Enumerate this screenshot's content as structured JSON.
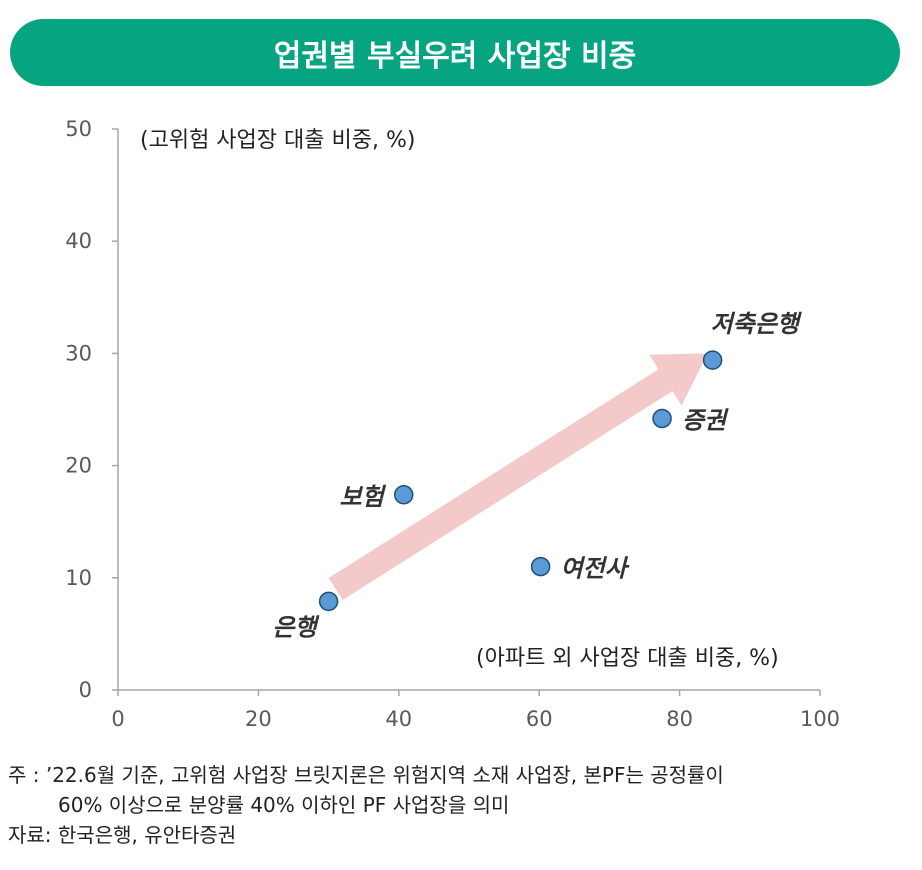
{
  "title": "업권별 부실우려 사업장 비중",
  "colors": {
    "banner": "#06A480",
    "point_fill": "#5B9BD5",
    "point_stroke": "#1F4E79",
    "arrow": "#F4C9C9",
    "axis": "#A6A6A6",
    "tick_text": "#595959"
  },
  "chart_data": {
    "type": "scatter",
    "ylabel": "(고위험 사업장 대출 비중, %)",
    "xlabel": "(아파트 외 사업장 대출 비중, %)",
    "xlim": [
      0,
      100
    ],
    "ylim": [
      0,
      50
    ],
    "x_ticks": [
      0,
      20,
      40,
      60,
      80,
      100
    ],
    "y_ticks": [
      0,
      10,
      20,
      30,
      40,
      50
    ],
    "grid": false,
    "points": [
      {
        "label": "은행",
        "x": 30,
        "y": 7.9
      },
      {
        "label": "보험",
        "x": 40.7,
        "y": 17.4
      },
      {
        "label": "여전사",
        "x": 60.2,
        "y": 11
      },
      {
        "label": "증권",
        "x": 77.5,
        "y": 24.2
      },
      {
        "label": "저축은행",
        "x": 84.7,
        "y": 29.4
      }
    ],
    "trend_arrow": {
      "from": [
        31,
        9
      ],
      "to": [
        84,
        30
      ]
    }
  },
  "notes": {
    "line1": "주 : ’22.6월 기준, 고위험 사업장 브릿지론은 위험지역 소재 사업장, 본PF는 공정률이",
    "line2": "60% 이상으로 분양률 40% 이하인 PF 사업장을 의미",
    "line3": "자료: 한국은행, 유안타증권"
  }
}
